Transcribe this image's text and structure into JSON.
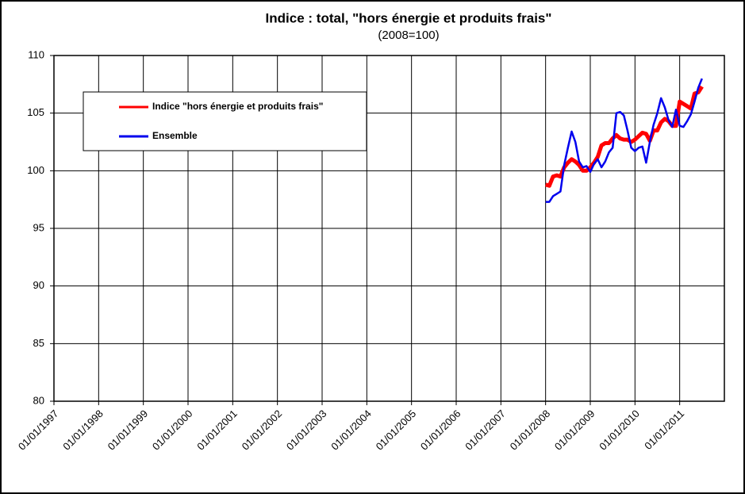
{
  "chart_data": {
    "type": "line",
    "title": "Indice : total, \"hors énergie et produits frais\"",
    "subtitle": "(2008=100)",
    "x": [
      "2008-01",
      "2008-02",
      "2008-03",
      "2008-04",
      "2008-05",
      "2008-06",
      "2008-07",
      "2008-08",
      "2008-09",
      "2008-10",
      "2008-11",
      "2008-12",
      "2009-01",
      "2009-02",
      "2009-03",
      "2009-04",
      "2009-05",
      "2009-06",
      "2009-07",
      "2009-08",
      "2009-09",
      "2009-10",
      "2009-11",
      "2009-12",
      "2010-01",
      "2010-02",
      "2010-03",
      "2010-04",
      "2010-05",
      "2010-06",
      "2010-07",
      "2010-08",
      "2010-09",
      "2010-10",
      "2010-11",
      "2010-12",
      "2011-01",
      "2011-02",
      "2011-03",
      "2011-04",
      "2011-05",
      "2011-06",
      "2011-07"
    ],
    "series": [
      {
        "name": "Indice \"hors énergie et produits frais\"",
        "color": "#ff0000",
        "width": 5,
        "values": [
          98.8,
          98.7,
          99.5,
          99.6,
          99.5,
          100.3,
          100.7,
          101.0,
          100.8,
          100.5,
          100.0,
          100.0,
          100.3,
          100.7,
          101.2,
          102.2,
          102.4,
          102.4,
          102.8,
          103.1,
          102.8,
          102.7,
          102.7,
          102.5,
          102.7,
          103.0,
          103.3,
          103.2,
          102.6,
          103.5,
          103.5,
          104.2,
          104.5,
          104.3,
          103.9,
          103.9,
          106.0,
          105.8,
          105.6,
          105.4,
          106.7,
          106.8,
          107.3
        ]
      },
      {
        "name": "Ensemble",
        "color": "#0000ee",
        "width": 2.5,
        "values": [
          97.3,
          97.3,
          97.8,
          98.0,
          98.2,
          100.5,
          102.0,
          103.4,
          102.5,
          100.8,
          100.3,
          100.4,
          99.9,
          100.6,
          101.0,
          100.3,
          100.8,
          101.6,
          102.0,
          105.0,
          105.1,
          104.8,
          103.5,
          102.0,
          101.7,
          102.0,
          102.1,
          100.7,
          102.5,
          104.0,
          105.0,
          106.3,
          105.5,
          104.4,
          103.8,
          105.3,
          103.9,
          103.8,
          104.3,
          104.9,
          106.0,
          107.2,
          108.0
        ]
      }
    ],
    "xlim": [
      "1997-01",
      "2012-01"
    ],
    "xticks": [
      {
        "value": "1997-01",
        "label": "01/01/1997"
      },
      {
        "value": "1998-01",
        "label": "01/01/1998"
      },
      {
        "value": "1999-01",
        "label": "01/01/1999"
      },
      {
        "value": "2000-01",
        "label": "01/01/2000"
      },
      {
        "value": "2001-01",
        "label": "01/01/2001"
      },
      {
        "value": "2002-01",
        "label": "01/01/2002"
      },
      {
        "value": "2003-01",
        "label": "01/01/2003"
      },
      {
        "value": "2004-01",
        "label": "01/01/2004"
      },
      {
        "value": "2005-01",
        "label": "01/01/2005"
      },
      {
        "value": "2006-01",
        "label": "01/01/2006"
      },
      {
        "value": "2007-01",
        "label": "01/01/2007"
      },
      {
        "value": "2008-01",
        "label": "01/01/2008"
      },
      {
        "value": "2009-01",
        "label": "01/01/2009"
      },
      {
        "value": "2010-01",
        "label": "01/01/2010"
      },
      {
        "value": "2011-01",
        "label": "01/01/2011"
      }
    ],
    "ylim": [
      80,
      110
    ],
    "yticks": [
      80,
      85,
      90,
      95,
      100,
      105,
      110
    ],
    "grid": true
  }
}
